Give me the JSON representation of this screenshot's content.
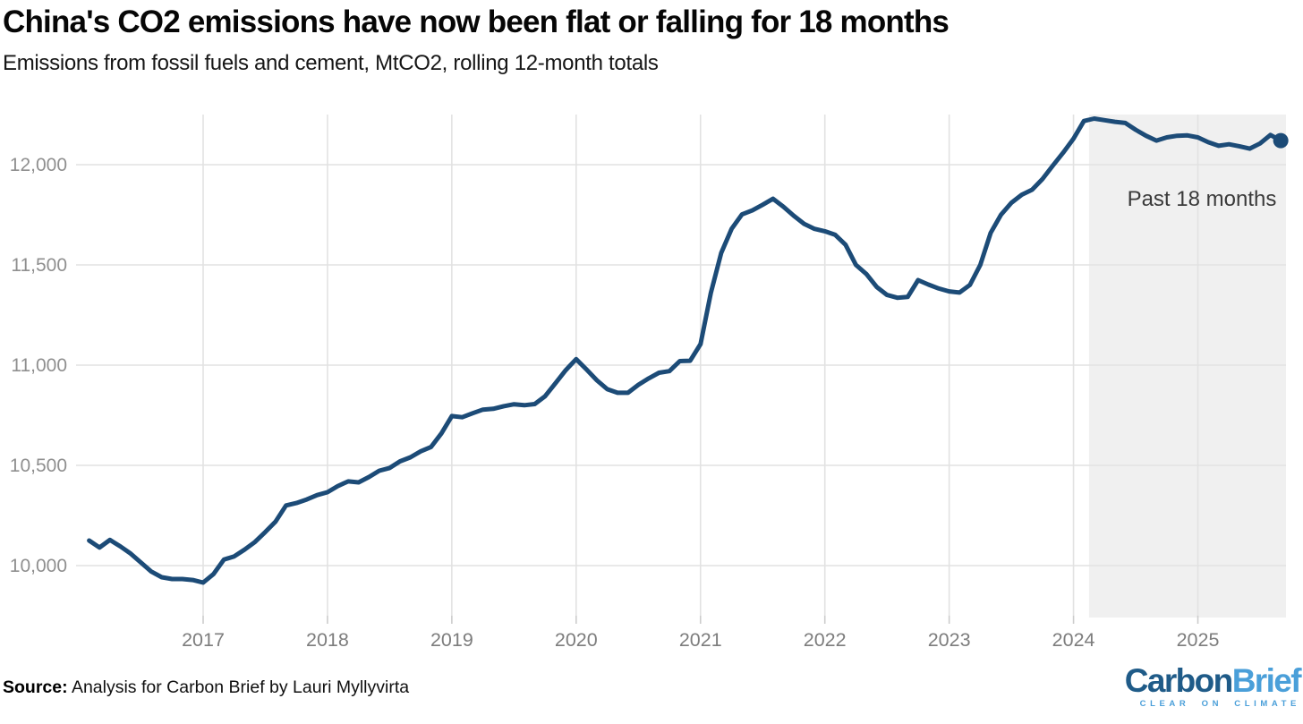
{
  "header": {
    "title": "China's CO2 emissions have now been flat or falling for 18 months",
    "subtitle": "Emissions from fossil fuels and cement, MtCO2, rolling 12-month totals"
  },
  "footer": {
    "source_label": "Source:",
    "source_text": " Analysis for Carbon Brief by Lauri Myllyvirta"
  },
  "logo": {
    "part1": "Carbon",
    "part2": "Brief",
    "tagline": "CLEAR ON CLIMATE",
    "color_dark": "#1f5b88",
    "color_light": "#4a9fd9"
  },
  "chart_data": {
    "type": "line",
    "title": "China's CO2 emissions have now been flat or falling for 18 months",
    "subtitle": "Emissions from fossil fuels and cement, MtCO2, rolling 12-month totals",
    "xlabel": "",
    "ylabel": "MtCO2",
    "grid": true,
    "line_color": "#1c4b77",
    "end_dot": true,
    "ylim": [
      9728,
      12250
    ],
    "y_ticks": [
      {
        "value": 10000,
        "label": "10,000"
      },
      {
        "value": 10500,
        "label": "10,500"
      },
      {
        "value": 11000,
        "label": "11,000"
      },
      {
        "value": 11500,
        "label": "11,500"
      },
      {
        "value": 12000,
        "label": "12,000"
      }
    ],
    "x_ticks": [
      {
        "year": 2017,
        "label": "2017"
      },
      {
        "year": 2018,
        "label": "2018"
      },
      {
        "year": 2019,
        "label": "2019"
      },
      {
        "year": 2020,
        "label": "2020"
      },
      {
        "year": 2021,
        "label": "2021"
      },
      {
        "year": 2022,
        "label": "2022"
      },
      {
        "year": 2023,
        "label": "2023"
      },
      {
        "year": 2024,
        "label": "2024"
      },
      {
        "year": 2025,
        "label": "2025"
      }
    ],
    "highlight": {
      "label": "Past 18 months",
      "start_month": "2024-03",
      "color": "#f0f0f0"
    },
    "series": [
      {
        "name": "CO2 emissions from fossil fuels and cement, rolling 12-month total (MtCO2)",
        "start_month": "2016-02",
        "frequency": "monthly",
        "values": [
          10125,
          10090,
          10128,
          10096,
          10060,
          10015,
          9970,
          9942,
          9933,
          9933,
          9928,
          9915,
          9958,
          10030,
          10046,
          10080,
          10118,
          10168,
          10220,
          10300,
          10312,
          10330,
          10352,
          10366,
          10397,
          10420,
          10415,
          10442,
          10473,
          10487,
          10520,
          10540,
          10570,
          10592,
          10660,
          10746,
          10740,
          10760,
          10778,
          10782,
          10795,
          10805,
          10800,
          10806,
          10845,
          10910,
          10975,
          11030,
          10978,
          10924,
          10880,
          10862,
          10862,
          10902,
          10934,
          10962,
          10970,
          11020,
          11022,
          11105,
          11360,
          11560,
          11680,
          11752,
          11772,
          11800,
          11830,
          11790,
          11745,
          11705,
          11680,
          11668,
          11650,
          11600,
          11500,
          11455,
          11390,
          11350,
          11336,
          11340,
          11424,
          11402,
          11382,
          11368,
          11362,
          11400,
          11500,
          11660,
          11750,
          11810,
          11850,
          11875,
          11928,
          11995,
          12060,
          12130,
          12218,
          12230,
          12222,
          12214,
          12208,
          12174,
          12144,
          12120,
          12136,
          12144,
          12146,
          12136,
          12112,
          12094,
          12102,
          12092,
          12080,
          12106,
          12148,
          12120
        ]
      }
    ]
  }
}
